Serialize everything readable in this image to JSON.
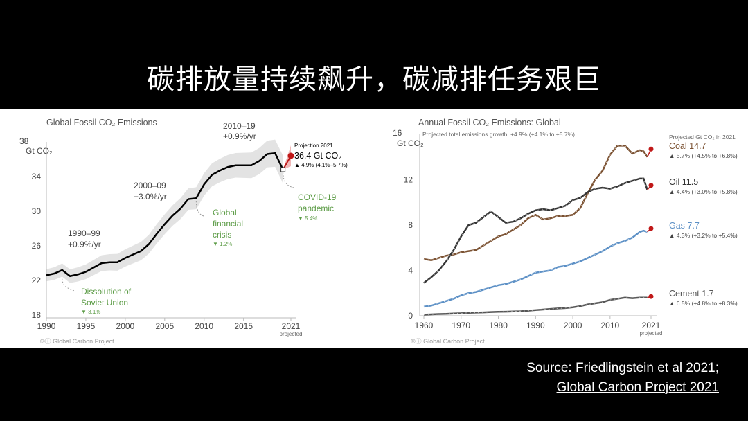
{
  "slide": {
    "title": "碳排放量持续飙升，碳减排任务艰巨",
    "source_prefix": "Source: ",
    "source_link1": "Friedlingstein et al 2021",
    "source_sep": ";",
    "source_link2": "Global Carbon Project 2021"
  },
  "colors": {
    "black": "#000000",
    "coal": "#7a5030",
    "oil": "#333333",
    "gas": "#5b8fc5",
    "cement": "#555555",
    "annotation_green": "#5b9b45",
    "projection_red": "#c01818",
    "band": "#e3e3e3"
  },
  "chart_data": [
    {
      "type": "line",
      "title": "Global Fossil CO₂ Emissions",
      "ylabel": "38 Gt CO₂",
      "ylim": [
        18,
        38
      ],
      "xlim": [
        1990,
        2021
      ],
      "y_ticks": [
        18,
        22,
        26,
        30,
        34
      ],
      "x_ticks": [
        1990,
        1995,
        2000,
        2005,
        2010,
        2015,
        2021
      ],
      "x_tick_note": "projected",
      "credit": "©ⓘ Global Carbon Project",
      "series": [
        {
          "x": [
            1990,
            1991,
            1992,
            1993,
            1994,
            1995,
            1996,
            1997,
            1998,
            1999,
            2000,
            2001,
            2002,
            2003,
            2004,
            2005,
            2006,
            2007,
            2008,
            2009,
            2010,
            2011,
            2012,
            2013,
            2014,
            2015,
            2016,
            2017,
            2018,
            2019,
            2020
          ],
          "values": [
            22.6,
            22.8,
            23.2,
            22.5,
            22.7,
            23.0,
            23.5,
            24.0,
            24.1,
            24.1,
            24.6,
            25.0,
            25.4,
            26.2,
            27.4,
            28.5,
            29.5,
            30.3,
            31.4,
            31.5,
            33.1,
            34.2,
            34.7,
            35.1,
            35.3,
            35.3,
            35.3,
            35.8,
            36.6,
            36.7,
            34.8
          ]
        }
      ],
      "projection": {
        "x": 2021,
        "value": 36.4,
        "label": "Projection 2021",
        "value_label": "36.4 Gt CO₂",
        "change": "▲ 4.9% (4.1%–5.7%)"
      },
      "annotations": [
        {
          "text": "1990–99",
          "text2": "+0.9%/yr"
        },
        {
          "text": "2000–09",
          "text2": "+3.0%/yr"
        },
        {
          "text": "2010–19",
          "text2": "+0.9%/yr"
        },
        {
          "text": "Dissolution of",
          "text2": "Soviet Union",
          "change": "▼ 3.1%"
        },
        {
          "text": "Global",
          "text2": "financial",
          "text3": "crisis",
          "change": "▼ 1.2%"
        },
        {
          "text": "COVID-19",
          "text2": "pandemic",
          "change": "▼ 5.4%"
        }
      ]
    },
    {
      "type": "line",
      "title": "Annual Fossil CO₂ Emissions: Global",
      "subtitle": "Projected total emissions growth: +4.9% (+4.1% to +5.7%)",
      "ylabel": "16 Gt CO₂",
      "ylim": [
        0,
        16
      ],
      "xlim": [
        1960,
        2021
      ],
      "y_ticks": [
        0,
        4,
        8,
        12
      ],
      "x_ticks": [
        1960,
        1970,
        1980,
        1990,
        2000,
        2010,
        2021
      ],
      "x_tick_note": "projected",
      "credit": "©ⓘ Global Carbon Project",
      "legend_heading": "Projected Gt CO₂ in 2021",
      "x": [
        1960,
        1962,
        1964,
        1966,
        1968,
        1970,
        1972,
        1974,
        1976,
        1978,
        1980,
        1982,
        1984,
        1986,
        1988,
        1990,
        1992,
        1994,
        1996,
        1998,
        2000,
        2002,
        2004,
        2006,
        2008,
        2010,
        2012,
        2014,
        2016,
        2018,
        2019,
        2020
      ],
      "series": [
        {
          "name": "Coal 14.7",
          "change": "▲ 5.7% (+4.5% to +6.8%)",
          "color": "#7a5030",
          "projection": 14.7,
          "values": [
            5.0,
            4.9,
            5.1,
            5.3,
            5.4,
            5.6,
            5.7,
            5.8,
            6.2,
            6.6,
            7.0,
            7.2,
            7.6,
            8.0,
            8.6,
            8.9,
            8.5,
            8.6,
            8.8,
            8.8,
            8.9,
            9.5,
            10.8,
            12.0,
            12.8,
            14.2,
            15.0,
            15.0,
            14.3,
            14.6,
            14.5,
            14.0
          ]
        },
        {
          "name": "Oil 11.5",
          "change": "▲ 4.4% (+3.0% to +5.8%)",
          "color": "#333333",
          "projection": 11.5,
          "values": [
            2.9,
            3.4,
            4.0,
            4.8,
            5.8,
            7.0,
            8.0,
            8.2,
            8.7,
            9.2,
            8.7,
            8.2,
            8.3,
            8.6,
            9.0,
            9.3,
            9.4,
            9.3,
            9.5,
            9.7,
            10.2,
            10.4,
            10.9,
            11.2,
            11.3,
            11.2,
            11.4,
            11.7,
            11.9,
            12.1,
            12.1,
            11.1
          ]
        },
        {
          "name": "Gas 7.7",
          "change": "▲ 4.3% (+3.2% to +5.4%)",
          "color": "#5b8fc5",
          "projection": 7.7,
          "values": [
            0.8,
            0.9,
            1.1,
            1.3,
            1.5,
            1.8,
            2.0,
            2.1,
            2.3,
            2.5,
            2.7,
            2.8,
            3.0,
            3.2,
            3.5,
            3.8,
            3.9,
            4.0,
            4.3,
            4.4,
            4.6,
            4.8,
            5.1,
            5.4,
            5.7,
            6.1,
            6.4,
            6.6,
            6.9,
            7.4,
            7.5,
            7.4
          ]
        },
        {
          "name": "Cement 1.7",
          "change": "▲ 6.5% (+4.8% to +8.3%)",
          "color": "#555555",
          "projection": 1.7,
          "values": [
            0.1,
            0.12,
            0.15,
            0.17,
            0.2,
            0.22,
            0.26,
            0.28,
            0.3,
            0.33,
            0.35,
            0.36,
            0.38,
            0.4,
            0.45,
            0.5,
            0.55,
            0.6,
            0.65,
            0.68,
            0.75,
            0.85,
            1.0,
            1.1,
            1.2,
            1.4,
            1.5,
            1.6,
            1.55,
            1.6,
            1.6,
            1.6
          ]
        }
      ]
    }
  ]
}
